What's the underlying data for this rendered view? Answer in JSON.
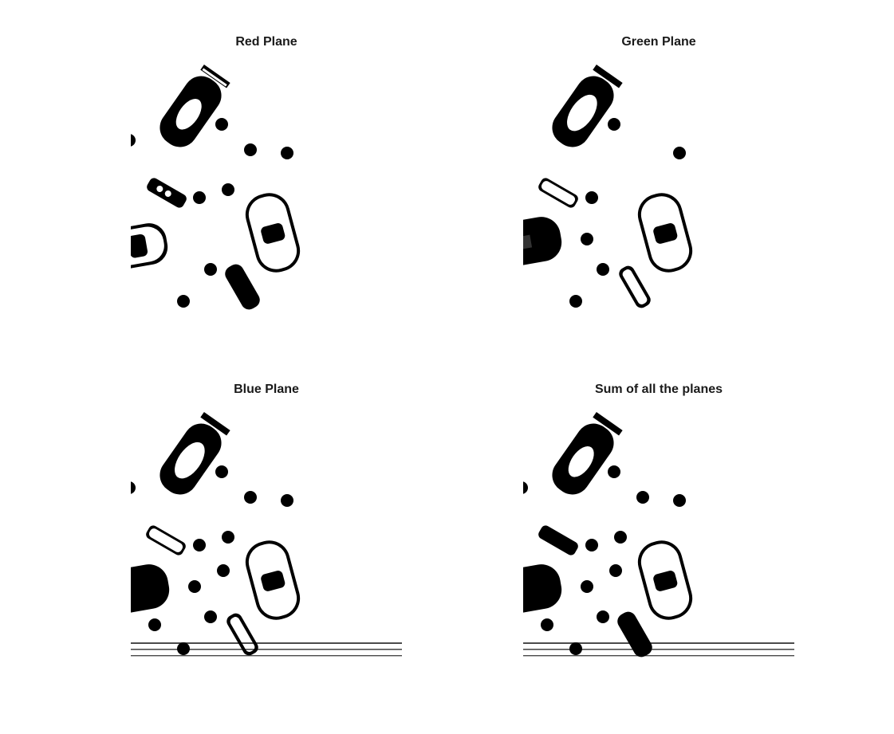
{
  "panels": [
    {
      "title": "Red Plane"
    },
    {
      "title": "Green Plane"
    },
    {
      "title": "Blue Plane"
    },
    {
      "title": "Sum of all the planes"
    }
  ]
}
